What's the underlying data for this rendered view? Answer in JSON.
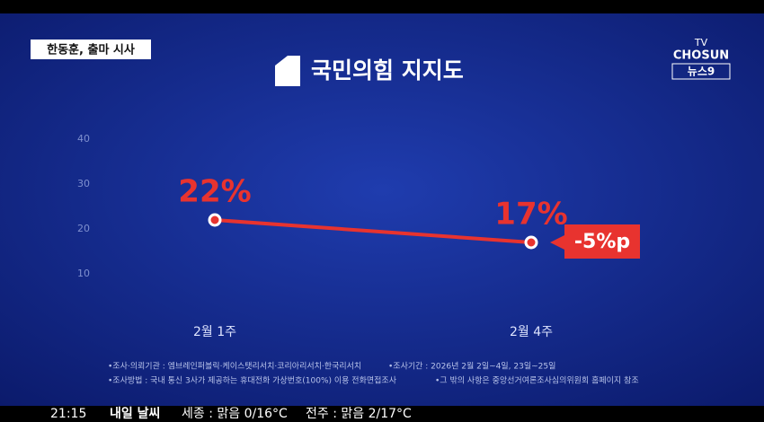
{
  "chart_data": {
    "type": "line",
    "title": "국민의힘 지지도",
    "tag": "한동훈, 출마 시사",
    "logo": [
      "TV",
      "CHOSUN",
      "뉴스9"
    ],
    "categories": [
      "2월 1주",
      "2월 4주"
    ],
    "values": [
      22,
      17
    ],
    "value_labels": [
      "22%",
      "17%"
    ],
    "color": "#e8332f",
    "annotation": "-5%p",
    "ylim": [
      0,
      40
    ],
    "yticks": [
      10,
      20,
      30,
      40
    ],
    "notes": [
      "•조사·의뢰기관 : 엠브레인퍼블릭·케이스탯리서치·코리아리서치·한국리서치",
      "•조사기간 : 2026년 2월 2일~4일, 23일~25일",
      "•조사방법 : 국내 통신 3사가 제공하는 휴대전화 가상번호(100%) 이용 전화면접조사",
      "•그 밖의 사항은 중앙선거여론조사심의위원회 홈페이지 참조"
    ]
  },
  "ticker": {
    "time": "21:15",
    "label": "내일 날씨",
    "items": [
      "세종 : 맑음 0/16°C",
      "전주 : 맑음 2/17°C"
    ]
  }
}
